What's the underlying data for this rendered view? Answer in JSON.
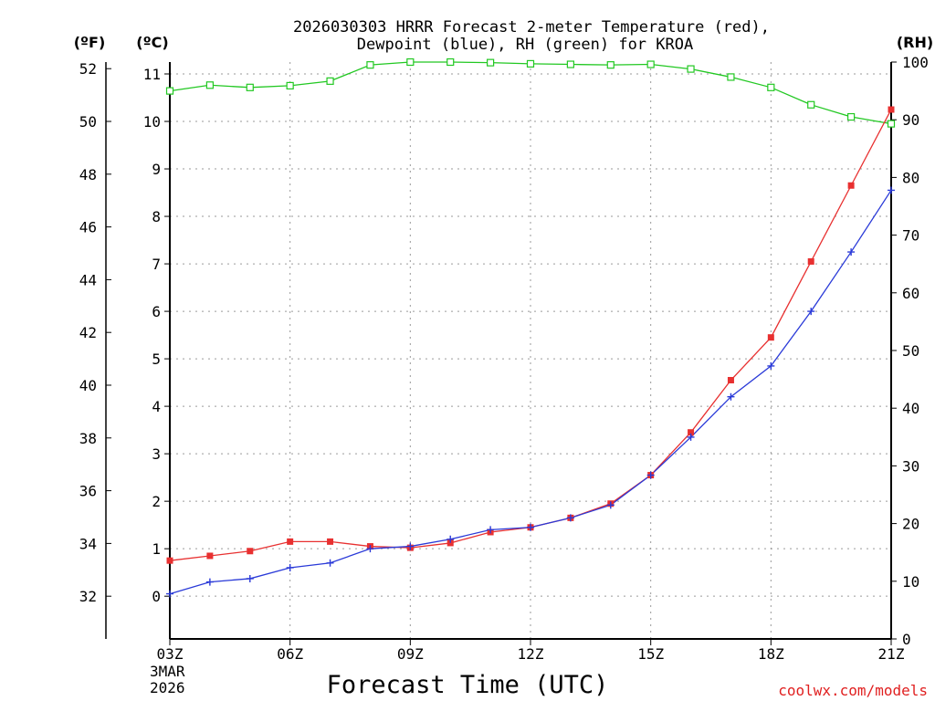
{
  "chart_data": {
    "type": "line",
    "title_line1": "2026030303 HRRR Forecast 2-meter Temperature (red),",
    "title_line2": "Dewpoint (blue), RH (green) for KROA",
    "xlabel": "Forecast Time (UTC)",
    "date_line1": "3MAR",
    "date_line2": "2026",
    "credit": "coolwx.com/models",
    "unit_f": "(ºF)",
    "unit_c": "(ºC)",
    "unit_rh": "(RH)",
    "x_hours": [
      3,
      4,
      5,
      6,
      7,
      8,
      9,
      10,
      11,
      12,
      13,
      14,
      15,
      16,
      17,
      18,
      19,
      20,
      21
    ],
    "x_ticks": [
      {
        "hour": 3,
        "label": "03Z"
      },
      {
        "hour": 6,
        "label": "06Z"
      },
      {
        "hour": 9,
        "label": "09Z"
      },
      {
        "hour": 12,
        "label": "12Z"
      },
      {
        "hour": 15,
        "label": "15Z"
      },
      {
        "hour": 18,
        "label": "18Z"
      },
      {
        "hour": 21,
        "label": "21Z"
      }
    ],
    "c_ticks": [
      "0",
      "1",
      "2",
      "3",
      "4",
      "5",
      "6",
      "7",
      "8",
      "9",
      "10",
      "11"
    ],
    "f_ticks": [
      "32",
      "34",
      "36",
      "38",
      "40",
      "42",
      "44",
      "46",
      "48",
      "50",
      "52"
    ],
    "rh_ticks": [
      "0",
      "10",
      "20",
      "30",
      "40",
      "50",
      "60",
      "70",
      "80",
      "90",
      "100"
    ],
    "xlim": [
      3,
      21
    ],
    "ylim_c": [
      -0.9,
      11.25
    ],
    "ylim_rh": [
      0,
      100
    ],
    "colors": {
      "temperature": "#e83030",
      "dewpoint": "#2a3ad8",
      "rh": "#22c822",
      "grid": "#9a9a9a"
    },
    "series": [
      {
        "name": "Temperature",
        "unit": "C",
        "values": [
          0.75,
          0.85,
          0.95,
          1.15,
          1.15,
          1.05,
          1.02,
          1.12,
          1.35,
          1.45,
          1.65,
          1.95,
          2.55,
          3.45,
          4.55,
          5.45,
          7.05,
          8.65,
          10.25
        ]
      },
      {
        "name": "Dewpoint",
        "unit": "C",
        "values": [
          0.05,
          0.3,
          0.37,
          0.6,
          0.7,
          1.0,
          1.05,
          1.2,
          1.4,
          1.45,
          1.65,
          1.92,
          2.55,
          3.35,
          4.2,
          4.85,
          6.0,
          7.25,
          8.55
        ]
      },
      {
        "name": "RH",
        "unit": "%",
        "values": [
          95,
          96,
          95.6,
          95.9,
          96.7,
          99.5,
          100,
          100,
          99.9,
          99.7,
          99.6,
          99.5,
          99.6,
          98.8,
          97.4,
          95.6,
          92.6,
          90.5,
          89.3
        ]
      }
    ]
  }
}
